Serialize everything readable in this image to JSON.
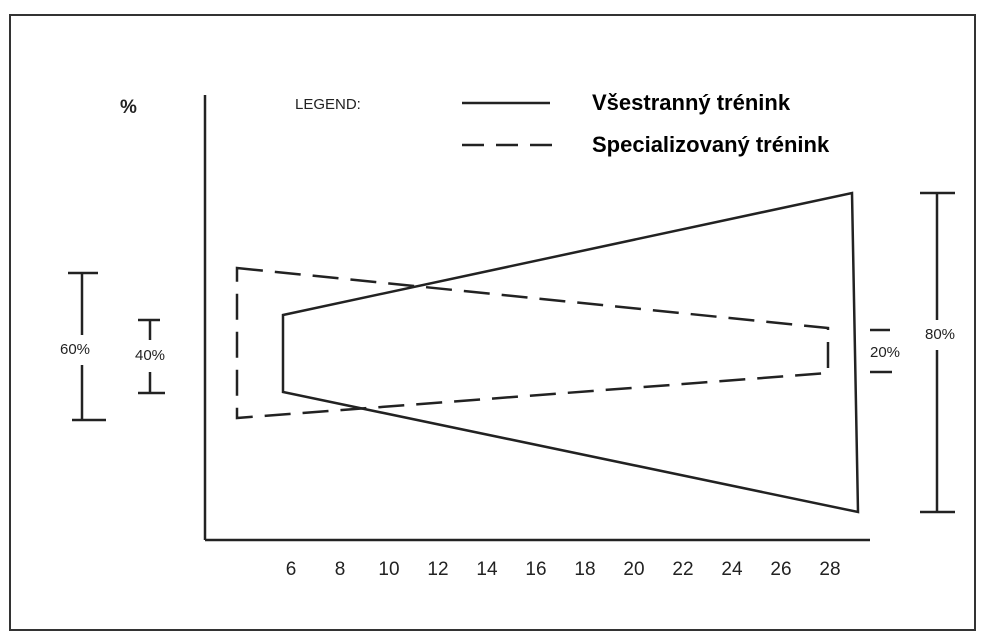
{
  "axis": {
    "y_label": "%",
    "x_ticks": [
      "6",
      "8",
      "10",
      "12",
      "14",
      "16",
      "18",
      "20",
      "22",
      "24",
      "26",
      "28"
    ]
  },
  "legend": {
    "title": "LEGEND:",
    "entries": [
      "Všestranný trénink",
      "Specializovaný trénink"
    ]
  },
  "brackets": {
    "left_outer": "60%",
    "left_inner": "40%",
    "right_inner": "20%",
    "right_outer": "80%"
  }
}
